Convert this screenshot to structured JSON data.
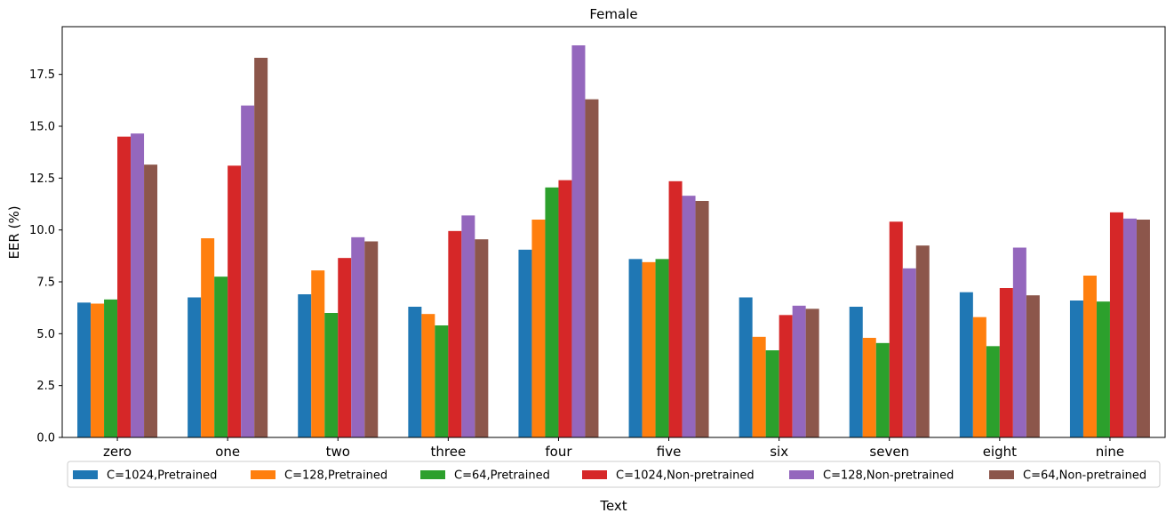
{
  "chart_data": {
    "type": "bar",
    "title": "Female",
    "xlabel": "Text",
    "ylabel": "EER (%)",
    "ylim": [
      0,
      19.8
    ],
    "yticks": [
      0.0,
      2.5,
      5.0,
      7.5,
      10.0,
      12.5,
      15.0,
      17.5
    ],
    "ytick_labels": [
      "0.0",
      "2.5",
      "5.0",
      "7.5",
      "10.0",
      "12.5",
      "15.0",
      "17.5"
    ],
    "grid": false,
    "legend_position": "bottom",
    "categories": [
      "zero",
      "one",
      "two",
      "three",
      "four",
      "five",
      "six",
      "seven",
      "eight",
      "nine"
    ],
    "series": [
      {
        "name": "C=1024,Pretrained",
        "color": "#1f77b4",
        "values": [
          6.5,
          6.75,
          6.9,
          6.3,
          9.05,
          8.6,
          6.75,
          6.3,
          7.0,
          6.6
        ]
      },
      {
        "name": "C=128,Pretrained",
        "color": "#ff7f0e",
        "values": [
          6.45,
          9.6,
          8.05,
          5.95,
          10.5,
          8.45,
          4.85,
          4.8,
          5.8,
          7.8
        ]
      },
      {
        "name": "C=64,Pretrained",
        "color": "#2ca02c",
        "values": [
          6.65,
          7.75,
          6.0,
          5.4,
          12.05,
          8.6,
          4.2,
          4.55,
          4.4,
          6.55
        ]
      },
      {
        "name": "C=1024,Non-pretrained",
        "color": "#d62728",
        "values": [
          14.5,
          13.1,
          8.65,
          9.95,
          12.4,
          12.35,
          5.9,
          10.4,
          7.2,
          10.85
        ]
      },
      {
        "name": "C=128,Non-pretrained",
        "color": "#9467bd",
        "values": [
          14.65,
          16.0,
          9.65,
          10.7,
          18.9,
          11.65,
          6.35,
          8.15,
          9.15,
          10.55
        ]
      },
      {
        "name": "C=64,Non-pretrained",
        "color": "#8c564b",
        "values": [
          13.15,
          18.3,
          9.45,
          9.55,
          16.3,
          11.4,
          6.2,
          9.25,
          6.85,
          10.5
        ]
      }
    ]
  }
}
